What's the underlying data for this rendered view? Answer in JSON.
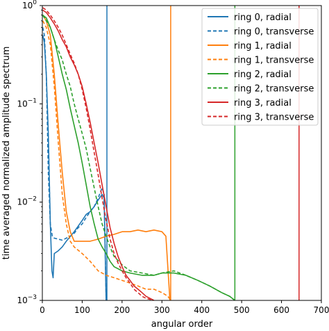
{
  "chart_data": {
    "type": "line",
    "title": "",
    "xlabel": "angular order",
    "ylabel": "time averaged normalized amplitude spectrum",
    "xlim": [
      0,
      700
    ],
    "ylim": [
      0.001,
      1
    ],
    "yscale": "log",
    "grid": false,
    "legend_position": "top-right",
    "x_ticks": [
      {
        "value": 0,
        "label": "0"
      },
      {
        "value": 100,
        "label": "100"
      },
      {
        "value": 200,
        "label": "200"
      },
      {
        "value": 300,
        "label": "300"
      },
      {
        "value": 400,
        "label": "400"
      },
      {
        "value": 500,
        "label": "500"
      },
      {
        "value": 600,
        "label": "600"
      },
      {
        "value": 700,
        "label": "700"
      }
    ],
    "y_ticks": [
      {
        "value": 0.001,
        "base": "10",
        "exp": "−3"
      },
      {
        "value": 0.01,
        "base": "10",
        "exp": "−2"
      },
      {
        "value": 0.1,
        "base": "10",
        "exp": "−1"
      },
      {
        "value": 1,
        "base": "10",
        "exp": "0"
      }
    ],
    "vertical_lines": [
      {
        "x": 162,
        "color": "#1f77b4"
      },
      {
        "x": 322,
        "color": "#ff7f0e"
      },
      {
        "x": 483,
        "color": "#2ca02c"
      },
      {
        "x": 644,
        "color": "#d62728"
      }
    ],
    "series": [
      {
        "name": "ring 0, radial",
        "color": "#1f77b4",
        "dash": false,
        "x": [
          1,
          5,
          10,
          15,
          20,
          24,
          27,
          30,
          40,
          50,
          60,
          80,
          100,
          110,
          120,
          130,
          140,
          150,
          155,
          160
        ],
        "y": [
          0.5,
          0.42,
          0.2,
          0.05,
          0.006,
          0.002,
          0.0017,
          0.003,
          0.0032,
          0.0035,
          0.004,
          0.005,
          0.0065,
          0.0075,
          0.008,
          0.009,
          0.0105,
          0.012,
          0.011,
          0.001
        ]
      },
      {
        "name": "ring 0, transverse",
        "color": "#1f77b4",
        "dash": true,
        "x": [
          1,
          5,
          10,
          12,
          15,
          20,
          25,
          30,
          40,
          50,
          60,
          70,
          80,
          90,
          100,
          110,
          120,
          130,
          140,
          150,
          155,
          160
        ],
        "y": [
          0.6,
          0.5,
          0.2,
          0.08,
          0.02,
          0.006,
          0.0045,
          0.0043,
          0.0042,
          0.0041,
          0.0043,
          0.0045,
          0.0048,
          0.0055,
          0.006,
          0.007,
          0.008,
          0.009,
          0.011,
          0.014,
          0.012,
          0.001
        ]
      },
      {
        "name": "ring 1, radial",
        "color": "#ff7f0e",
        "dash": false,
        "x": [
          1,
          10,
          20,
          30,
          40,
          50,
          60,
          70,
          80,
          90,
          100,
          120,
          140,
          160,
          180,
          200,
          220,
          240,
          260,
          280,
          300,
          310,
          320
        ],
        "y": [
          0.8,
          0.7,
          0.5,
          0.2,
          0.06,
          0.02,
          0.008,
          0.005,
          0.004,
          0.004,
          0.004,
          0.004,
          0.0042,
          0.0045,
          0.0047,
          0.005,
          0.005,
          0.0052,
          0.005,
          0.0052,
          0.005,
          0.0045,
          0.001
        ]
      },
      {
        "name": "ring 1, transverse",
        "color": "#ff7f0e",
        "dash": true,
        "x": [
          1,
          10,
          20,
          30,
          40,
          50,
          60,
          70,
          80,
          100,
          120,
          140,
          160,
          180,
          200,
          220,
          240,
          260,
          280,
          300,
          315,
          322
        ],
        "y": [
          0.7,
          0.6,
          0.4,
          0.15,
          0.04,
          0.012,
          0.006,
          0.004,
          0.0035,
          0.003,
          0.0025,
          0.002,
          0.0018,
          0.0017,
          0.0016,
          0.0015,
          0.0014,
          0.0013,
          0.0013,
          0.0012,
          0.0011,
          0.001
        ]
      },
      {
        "name": "ring 2, radial",
        "color": "#2ca02c",
        "dash": false,
        "x": [
          1,
          10,
          20,
          30,
          40,
          50,
          60,
          70,
          80,
          90,
          100,
          110,
          120,
          130,
          140,
          150,
          160,
          170,
          180,
          200,
          220,
          250,
          280,
          300,
          330,
          360,
          390,
          420,
          450,
          470,
          483
        ],
        "y": [
          0.8,
          0.75,
          0.6,
          0.45,
          0.3,
          0.2,
          0.14,
          0.09,
          0.06,
          0.04,
          0.025,
          0.015,
          0.009,
          0.006,
          0.0042,
          0.0035,
          0.003,
          0.0025,
          0.0022,
          0.002,
          0.0019,
          0.0018,
          0.0018,
          0.0019,
          0.0019,
          0.0018,
          0.0016,
          0.0014,
          0.0012,
          0.0011,
          0.001
        ]
      },
      {
        "name": "ring 2, transverse",
        "color": "#2ca02c",
        "dash": true,
        "x": [
          1,
          10,
          20,
          30,
          40,
          50,
          60,
          70,
          80,
          90,
          100,
          110,
          120,
          130,
          140,
          150,
          160,
          170,
          180,
          200,
          220,
          250,
          280,
          300,
          330,
          360,
          390,
          420,
          450,
          470,
          483
        ],
        "y": [
          0.8,
          0.7,
          0.6,
          0.45,
          0.35,
          0.28,
          0.2,
          0.15,
          0.1,
          0.07,
          0.05,
          0.035,
          0.022,
          0.014,
          0.009,
          0.006,
          0.0045,
          0.0035,
          0.0028,
          0.0023,
          0.002,
          0.0019,
          0.0018,
          0.0019,
          0.002,
          0.0018,
          0.0016,
          0.0014,
          0.0012,
          0.0011,
          0.001
        ]
      },
      {
        "name": "ring 3, radial",
        "color": "#d62728",
        "dash": false,
        "x": [
          1,
          10,
          20,
          30,
          40,
          50,
          60,
          70,
          80,
          90,
          100,
          110,
          120,
          130,
          140,
          150,
          160,
          170,
          180,
          190,
          200,
          210,
          220,
          230,
          240,
          250,
          260,
          280
        ],
        "y": [
          0.9,
          0.85,
          0.75,
          0.65,
          0.55,
          0.45,
          0.38,
          0.3,
          0.25,
          0.2,
          0.15,
          0.1,
          0.065,
          0.04,
          0.025,
          0.015,
          0.009,
          0.0055,
          0.0038,
          0.0028,
          0.0022,
          0.0018,
          0.0016,
          0.0014,
          0.0013,
          0.0012,
          0.0011,
          0.001
        ]
      },
      {
        "name": "ring 3, transverse",
        "color": "#d62728",
        "dash": true,
        "x": [
          1,
          10,
          20,
          30,
          40,
          50,
          60,
          70,
          80,
          90,
          100,
          110,
          120,
          130,
          140,
          150,
          160,
          170,
          180,
          190,
          200,
          210,
          220,
          230,
          240,
          250,
          260,
          280
        ],
        "y": [
          0.95,
          0.9,
          0.8,
          0.7,
          0.6,
          0.5,
          0.4,
          0.32,
          0.26,
          0.2,
          0.14,
          0.09,
          0.055,
          0.032,
          0.019,
          0.011,
          0.0065,
          0.0042,
          0.003,
          0.0024,
          0.002,
          0.0017,
          0.0015,
          0.0013,
          0.0012,
          0.0011,
          0.00105,
          0.001
        ]
      }
    ]
  }
}
